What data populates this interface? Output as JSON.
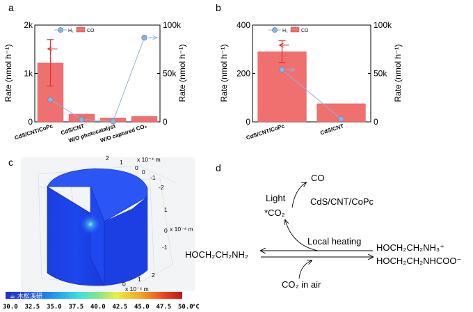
{
  "panels": {
    "a": "a",
    "b": "b",
    "c": "c",
    "d": "d"
  },
  "chart_data": [
    {
      "type": "bar",
      "panel": "a",
      "categories": [
        "CdS/CNT/CoPc",
        "CdS/CNT",
        "W/O photocatalyst",
        "W/O captured CO₂"
      ],
      "series": [
        {
          "name": "CO",
          "axis": "left",
          "kind": "bar",
          "values": [
            1220,
            160,
            80,
            110
          ],
          "error": [
            480,
            0,
            0,
            0
          ],
          "color": "#f07070"
        },
        {
          "name": "H₂",
          "axis": "right",
          "kind": "line",
          "values": [
            23000,
            2500,
            500,
            87000
          ],
          "color": "#8fb3d9"
        }
      ],
      "ylabel_left": "Rate (nmol h⁻¹)",
      "ylabel_right": "Rate (nmol h⁻¹)",
      "ylim_left": [
        0,
        2000
      ],
      "ylim_right": [
        0,
        100000
      ],
      "yticks_left": [
        {
          "v": 0,
          "label": "0"
        },
        {
          "v": 1000,
          "label": "1k"
        },
        {
          "v": 2000,
          "label": "2k"
        }
      ],
      "yticks_right": [
        {
          "v": 0,
          "label": "0"
        },
        {
          "v": 50000,
          "label": "50k"
        },
        {
          "v": 100000,
          "label": "100k"
        }
      ],
      "legend": {
        "position": "top-left",
        "h2_label": "H₂",
        "co_label": "CO"
      }
    },
    {
      "type": "bar",
      "panel": "b",
      "categories": [
        "CdS/CNT/CoPc",
        "CdS/CNT"
      ],
      "series": [
        {
          "name": "CO",
          "axis": "left",
          "kind": "bar",
          "values": [
            290,
            75
          ],
          "error": [
            45,
            0
          ],
          "color": "#f07070"
        },
        {
          "name": "H₂",
          "axis": "right",
          "kind": "line",
          "values": [
            54000,
            3000
          ],
          "color": "#8fb3d9"
        }
      ],
      "ylabel_left": "Rate (nmol h⁻¹)",
      "ylabel_right": "Rate (nmol h⁻¹)",
      "ylim_left": [
        0,
        400
      ],
      "ylim_right": [
        0,
        100000
      ],
      "yticks_left": [
        {
          "v": 0,
          "label": "0"
        },
        {
          "v": 200,
          "label": "200"
        },
        {
          "v": 400,
          "label": "400"
        }
      ],
      "yticks_right": [
        {
          "v": 0,
          "label": "0"
        },
        {
          "v": 50000,
          "label": "50k"
        },
        {
          "v": 100000,
          "label": "100k"
        }
      ],
      "legend": {
        "position": "top-left",
        "h2_label": "H₂",
        "co_label": "CO"
      }
    }
  ],
  "simulation": {
    "unit_top": "x 10⁻⁴ m",
    "unit_side": "x 10⁻⁴ m",
    "unit_bottom": "x 10⁻⁴ m",
    "ticks_top_left": [
      "2",
      "1",
      "0"
    ],
    "ticks_top_right": [
      "0",
      "-1",
      "-2"
    ],
    "ticks_side": [
      "1",
      "0",
      "-1"
    ],
    "ticks_bottom": [
      "2",
      "1",
      "0"
    ],
    "colorbar": {
      "labels": [
        "30.0",
        "32.5",
        "35.0",
        "37.5",
        "40.0",
        "42.5",
        "45.0",
        "47.5",
        "50.0"
      ],
      "unit": "°C",
      "min": 30.0,
      "max": 50.0
    },
    "watermark": "☕ 木松溪研"
  },
  "scheme": {
    "co": "CO",
    "light": "Light",
    "co2_star": "*CO₂",
    "catalyst": "CdS/CNT/CoPc",
    "local_heating": "Local heating",
    "mea": "HOCH₂CH₂NH₂",
    "ammonium": "HOCH₂CH₂NH₃⁺",
    "carbamate": "HOCH₂CH₂NHCOO⁻",
    "co2_air": "CO₂ in air"
  }
}
